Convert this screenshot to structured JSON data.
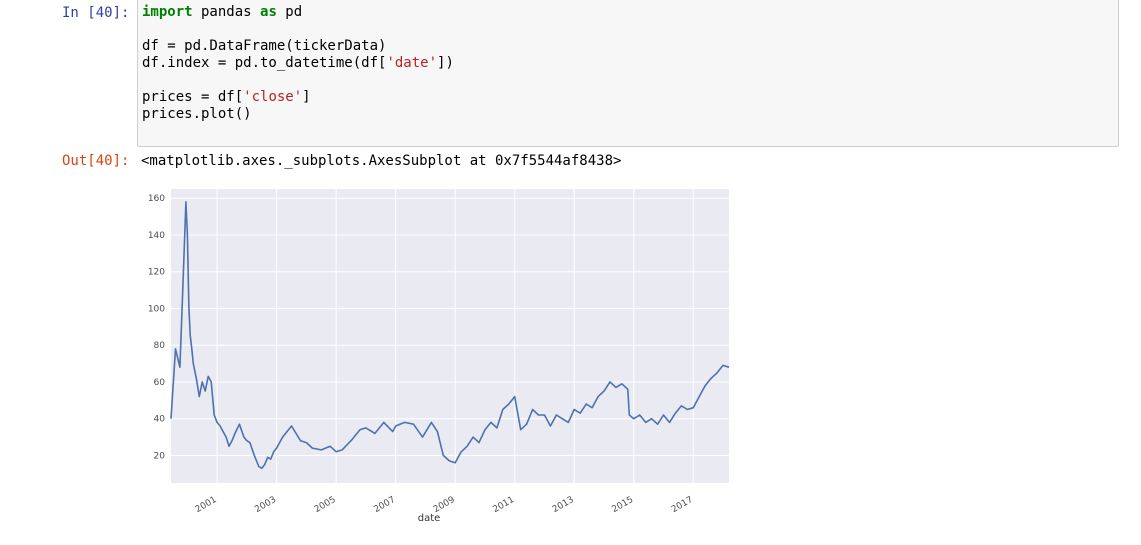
{
  "cell": {
    "in_prompt": "In [40]:",
    "out_prompt": "Out[40]:",
    "code_lines": [
      [
        {
          "t": "import",
          "c": "kw"
        },
        {
          "t": " pandas ",
          "c": ""
        },
        {
          "t": "as",
          "c": "kw"
        },
        {
          "t": " pd",
          "c": ""
        }
      ],
      [],
      [
        {
          "t": "df = pd.DataFrame(tickerData)",
          "c": ""
        }
      ],
      [
        {
          "t": "df.index = pd.to_datetime(df[",
          "c": ""
        },
        {
          "t": "'date'",
          "c": "str"
        },
        {
          "t": "])",
          "c": ""
        }
      ],
      [],
      [
        {
          "t": "prices = df[",
          "c": ""
        },
        {
          "t": "'close'",
          "c": "str"
        },
        {
          "t": "]",
          "c": ""
        }
      ],
      [
        {
          "t": "prices.plot()",
          "c": ""
        }
      ]
    ],
    "output_text": "<matplotlib.axes._subplots.AxesSubplot at 0x7f5544af8438>"
  },
  "colors": {
    "line": "#4c72b0",
    "axes_bg": "#eaeaf2",
    "grid": "#ffffff"
  },
  "chart_data": {
    "type": "line",
    "xlabel": "date",
    "ylabel": "",
    "title": "",
    "grid": true,
    "x_ticks": [
      "2001",
      "2003",
      "2005",
      "2007",
      "2009",
      "2011",
      "2013",
      "2015",
      "2017"
    ],
    "y_ticks": [
      20,
      40,
      60,
      80,
      100,
      120,
      140,
      160
    ],
    "xlim": [
      1999.45,
      2018.2
    ],
    "ylim": [
      5,
      165
    ],
    "series": [
      {
        "x": [
          1999.45,
          1999.6,
          1999.75,
          1999.85,
          1999.95,
          2000.0,
          2000.05,
          2000.1,
          2000.15,
          2000.2,
          2000.3,
          2000.4,
          2000.5,
          2000.6,
          2000.7,
          2000.8,
          2000.9,
          2001.0,
          2001.1,
          2001.2,
          2001.3,
          2001.4,
          2001.5,
          2001.6,
          2001.75,
          2001.9,
          2002.0,
          2002.1,
          2002.25,
          2002.4,
          2002.5,
          2002.6,
          2002.7,
          2002.8,
          2002.9,
          2003.0,
          2003.2,
          2003.5,
          2003.8,
          2004.0,
          2004.2,
          2004.5,
          2004.8,
          2005.0,
          2005.2,
          2005.5,
          2005.8,
          2006.0,
          2006.3,
          2006.6,
          2006.9,
          2007.0,
          2007.3,
          2007.6,
          2007.9,
          2008.2,
          2008.4,
          2008.6,
          2008.8,
          2009.0,
          2009.2,
          2009.4,
          2009.6,
          2009.8,
          2010.0,
          2010.2,
          2010.4,
          2010.6,
          2010.8,
          2011.0,
          2011.2,
          2011.4,
          2011.6,
          2011.8,
          2012.0,
          2012.2,
          2012.4,
          2012.6,
          2012.8,
          2013.0,
          2013.2,
          2013.4,
          2013.6,
          2013.8,
          2014.0,
          2014.2,
          2014.4,
          2014.6,
          2014.8,
          2014.85,
          2015.0,
          2015.2,
          2015.4,
          2015.6,
          2015.8,
          2016.0,
          2016.2,
          2016.4,
          2016.6,
          2016.8,
          2017.0,
          2017.2,
          2017.4,
          2017.6,
          2017.8,
          2018.0,
          2018.2
        ],
        "y": [
          40,
          78,
          68,
          112,
          158,
          140,
          100,
          85,
          78,
          70,
          62,
          52,
          60,
          55,
          63,
          60,
          42,
          38,
          36,
          33,
          30,
          25,
          28,
          32,
          37,
          30,
          28,
          27,
          20,
          14,
          13,
          15,
          19,
          18,
          22,
          24,
          30,
          36,
          28,
          27,
          24,
          23,
          25,
          22,
          23,
          28,
          34,
          35,
          32,
          38,
          33,
          36,
          38,
          37,
          30,
          38,
          33,
          20,
          17,
          16,
          22,
          25,
          30,
          27,
          34,
          38,
          35,
          45,
          48,
          52,
          34,
          37,
          45,
          42,
          42,
          36,
          42,
          40,
          38,
          45,
          43,
          48,
          46,
          52,
          55,
          60,
          57,
          59,
          56,
          42,
          40,
          42,
          38,
          40,
          37,
          42,
          38,
          43,
          47,
          45,
          46,
          52,
          58,
          62,
          65,
          69,
          68
        ]
      }
    ]
  }
}
